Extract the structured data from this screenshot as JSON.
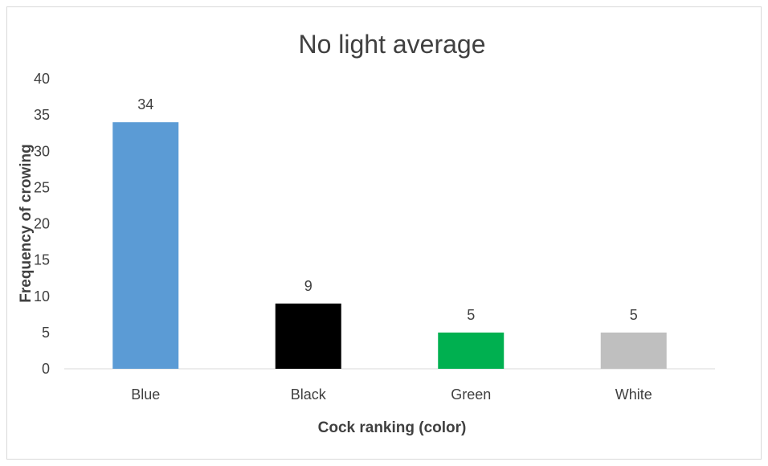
{
  "chart_data": {
    "type": "bar",
    "title": "No light average",
    "xlabel": "Cock ranking (color)",
    "ylabel": "Frequency of crowing",
    "categories": [
      "Blue",
      "Black",
      "Green",
      "White"
    ],
    "values": [
      34,
      9,
      5,
      5
    ],
    "data_labels": [
      "34",
      "9",
      "5",
      "5"
    ],
    "bar_colors": [
      "#5b9bd5",
      "#000000",
      "#00b050",
      "#bfbfbf"
    ],
    "ylim": [
      0,
      40
    ],
    "yticks": [
      "0",
      "5",
      "10",
      "15",
      "20",
      "25",
      "30",
      "35",
      "40"
    ],
    "grid": false,
    "legend": "none"
  }
}
